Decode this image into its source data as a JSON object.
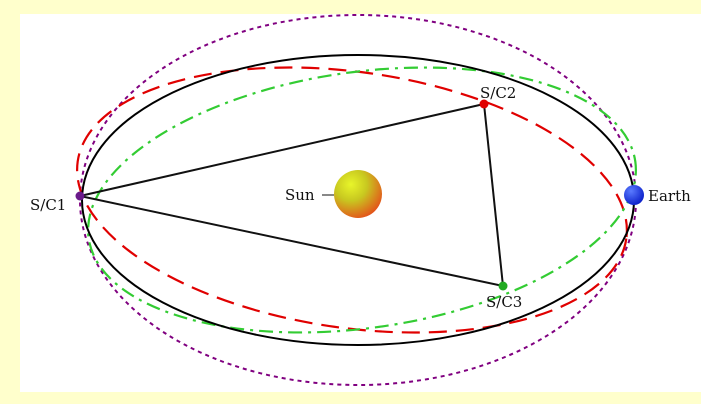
{
  "labels": {
    "sun": "Sun",
    "earth": "Earth",
    "sc1": "S/C1",
    "sc2": "S/C2",
    "sc3": "S/C3"
  },
  "colors": {
    "background": "#ffffcc",
    "panel": "#ffffff",
    "main_orbit": "#000000",
    "orbit_sc1": "#800080",
    "orbit_sc2": "#e00000",
    "orbit_sc3": "#33cc33",
    "earth": "#1a33e6",
    "sun_light": "#d9f21a",
    "sun_dark": "#e65c1a",
    "sc1_marker": "#6a1a8a",
    "sc2_marker": "#e00000",
    "sc3_marker": "#22aa22"
  }
}
